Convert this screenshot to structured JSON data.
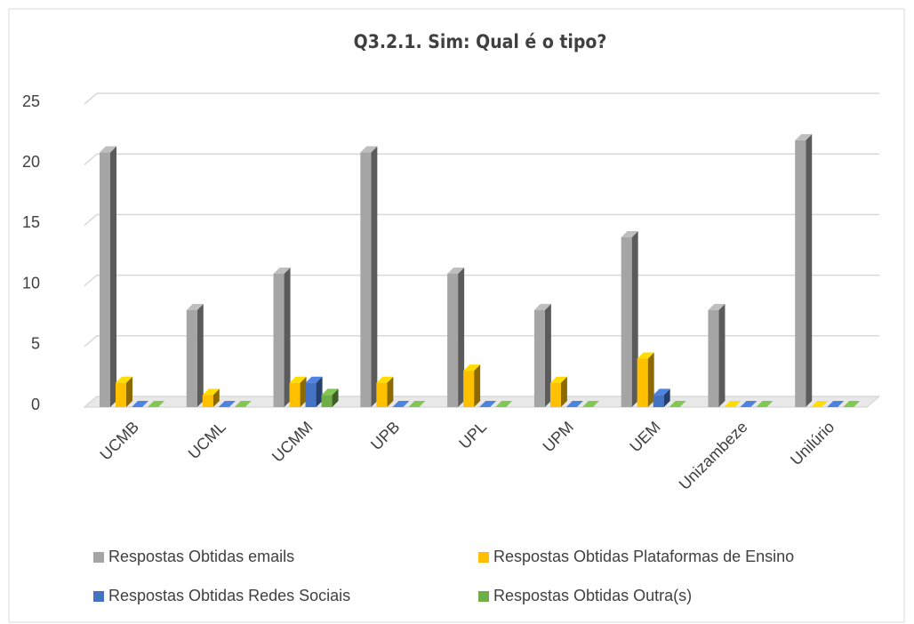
{
  "chart_data": {
    "type": "bar3d",
    "title": "Q3.2.1. Sim: Qual é o tipo?",
    "categories": [
      "UCMB",
      "UCML",
      "UCMM",
      "UPB",
      "UPL",
      "UPM",
      "UEM",
      "Unizambeze",
      "Unilúrio"
    ],
    "series": [
      {
        "name": "Respostas Obtidas emails",
        "color": "#a5a5a5",
        "values": [
          21,
          8,
          11,
          21,
          11,
          8,
          14,
          8,
          22
        ]
      },
      {
        "name": "Respostas Obtidas Plataformas de Ensino",
        "color": "#ffc000",
        "values": [
          2,
          1,
          2,
          2,
          3,
          2,
          4,
          0,
          0
        ]
      },
      {
        "name": "Respostas Obtidas Redes Sociais",
        "color": "#4472c4",
        "values": [
          0,
          0,
          2,
          0,
          0,
          0,
          1,
          0,
          0
        ]
      },
      {
        "name": "Respostas Obtidas Outra(s)",
        "color": "#70ad47",
        "values": [
          0,
          0,
          1,
          0,
          0,
          0,
          0,
          0,
          0
        ]
      }
    ],
    "ylim": [
      0,
      25
    ],
    "yticks": [
      0,
      5,
      10,
      15,
      20,
      25
    ],
    "grid": true,
    "legend": "bottom"
  }
}
